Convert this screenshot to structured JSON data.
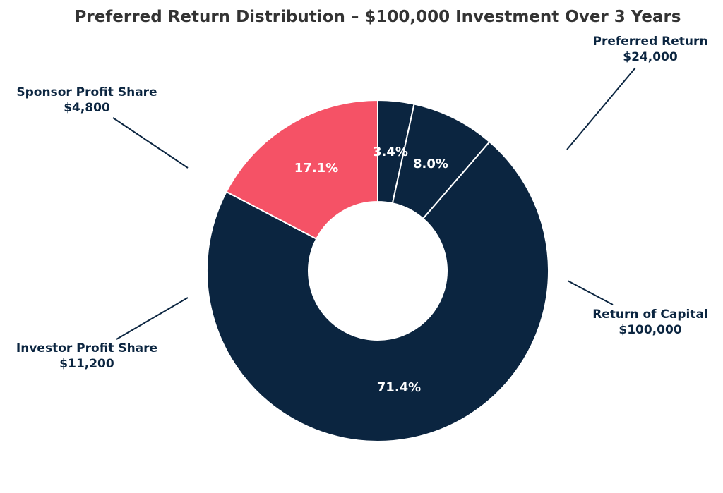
{
  "colors": {
    "title": "#333333",
    "label": "#0b2540",
    "navy": "#0b2540",
    "coral": "#f55266",
    "pct_text": "#ffffff",
    "background": "#ffffff"
  },
  "chart_data": {
    "type": "pie",
    "donut": true,
    "title": "Preferred Return Distribution – $100,000 Investment Over 3 Years",
    "slices": [
      {
        "category": "Sponsor Profit Share",
        "amount_text": "$4,800",
        "value": 4800,
        "percent_text": "3.4%",
        "color": "#0b2540"
      },
      {
        "category": "Investor Profit Share",
        "amount_text": "$11,200",
        "value": 11200,
        "percent_text": "8.0%",
        "color": "#0b2540"
      },
      {
        "category": "Return of Capital",
        "amount_text": "$100,000",
        "value": 100000,
        "percent_text": "71.4%",
        "color": "#0b2540"
      },
      {
        "category": "Preferred Return",
        "amount_text": "$24,000",
        "value": 24000,
        "percent_text": "17.1%",
        "color": "#f55266"
      }
    ]
  }
}
